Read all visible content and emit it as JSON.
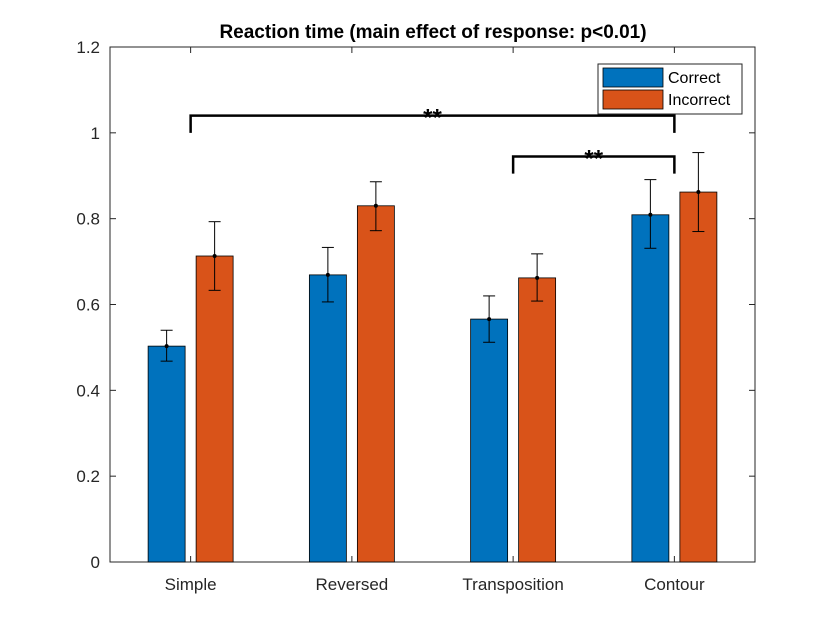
{
  "chart_data": {
    "type": "bar",
    "title": "Reaction time (main effect of response: p<0.01)",
    "xlabel": "",
    "ylabel": "",
    "categories": [
      "Simple",
      "Reversed",
      "Transposition",
      "Contour"
    ],
    "series": [
      {
        "name": "Correct",
        "color": "#0072BD",
        "values": [
          0.503,
          0.669,
          0.566,
          0.809
        ],
        "err_low": [
          0.468,
          0.606,
          0.512,
          0.731
        ],
        "err_high": [
          0.54,
          0.733,
          0.62,
          0.891
        ]
      },
      {
        "name": "Incorrect",
        "color": "#D95319",
        "values": [
          0.713,
          0.83,
          0.662,
          0.862
        ],
        "err_low": [
          0.633,
          0.772,
          0.608,
          0.77
        ],
        "err_high": [
          0.793,
          0.886,
          0.718,
          0.954
        ]
      }
    ],
    "ylim": [
      0,
      1.2
    ],
    "yticks": [
      0,
      0.2,
      0.4,
      0.6,
      0.8,
      1,
      1.2
    ],
    "ytick_labels": [
      "0",
      "0.2",
      "0.4",
      "0.6",
      "0.8",
      "1",
      "1.2"
    ],
    "grid": false,
    "legend": {
      "position": "top-right",
      "entries": [
        "Correct",
        "Incorrect"
      ]
    },
    "significance": [
      {
        "from_category": "Simple",
        "to_category": "Contour",
        "y": 1.04,
        "label": "**"
      },
      {
        "from_category": "Transposition",
        "to_category": "Contour",
        "y": 0.945,
        "label": "**"
      }
    ]
  }
}
